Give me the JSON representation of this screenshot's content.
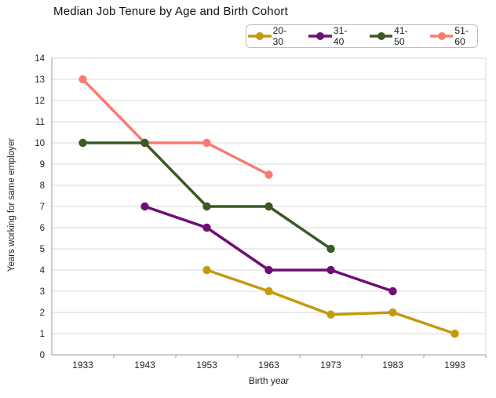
{
  "title": "Median Job Tenure by Age and Birth Cohort",
  "chart_data": {
    "type": "line",
    "title": "Median Job Tenure by Age and Birth Cohort",
    "categories": [
      "1933",
      "1943",
      "1953",
      "1963",
      "1973",
      "1983",
      "1993"
    ],
    "xlabel": "Birth year",
    "ylabel": "Years working for same employer",
    "ylim": [
      0,
      14
    ],
    "ytick_step": 1,
    "grid": true,
    "legend_position": "top-right",
    "series": [
      {
        "name": "20-30",
        "color": "#C49A0D",
        "values": [
          null,
          null,
          4,
          3,
          1.9,
          2,
          1
        ]
      },
      {
        "name": "31-40",
        "color": "#6E0E74",
        "values": [
          null,
          7,
          6,
          4,
          4,
          3,
          null
        ]
      },
      {
        "name": "41-50",
        "color": "#3A5A22",
        "values": [
          10,
          10,
          7,
          7,
          5,
          null,
          null
        ]
      },
      {
        "name": "51-60",
        "color": "#F97B70",
        "values": [
          13,
          10,
          10,
          8.5,
          null,
          null,
          null
        ]
      }
    ]
  },
  "colors": {
    "gridline": "#D9D9D9",
    "axis_line": "#999999",
    "tick_text": "#262626",
    "legend_border": "#BFBFBF"
  }
}
